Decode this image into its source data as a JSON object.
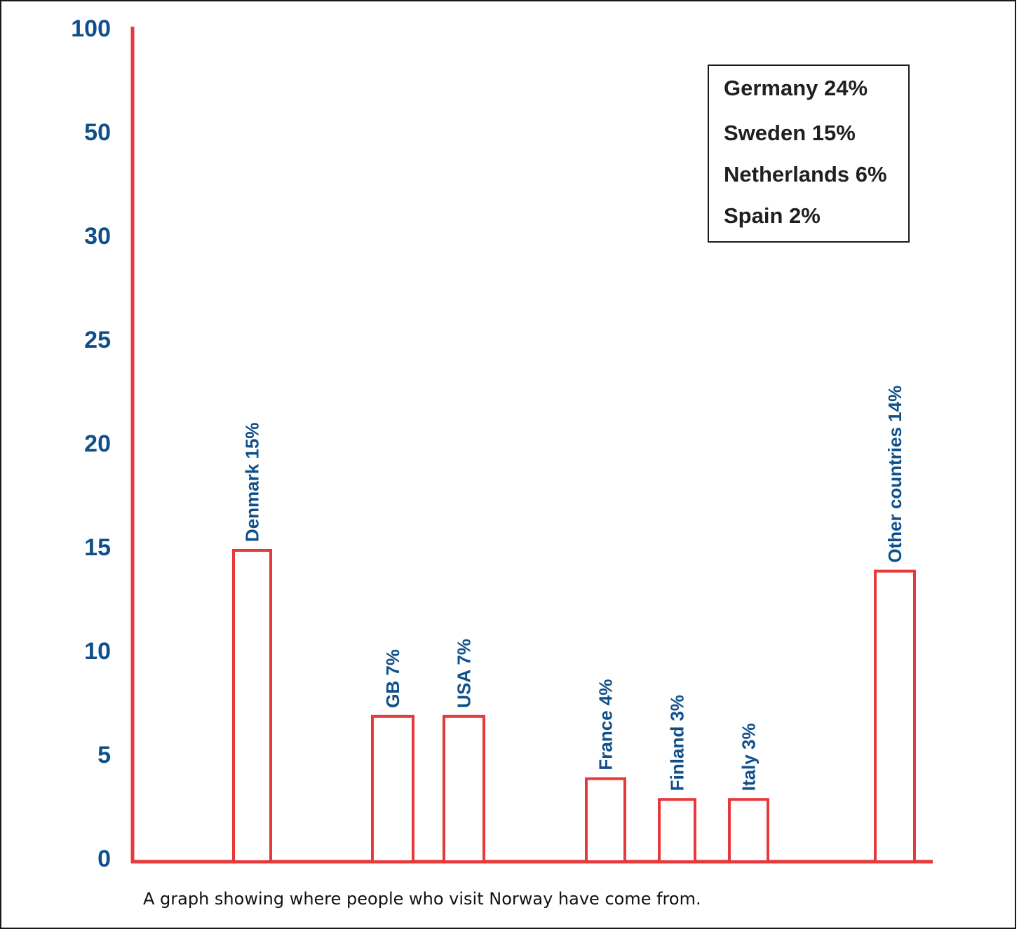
{
  "chart_data": {
    "type": "bar",
    "y_ticks": [
      "100",
      "50",
      "30",
      "25",
      "20",
      "15",
      "10",
      "5",
      "0"
    ],
    "categories": [
      "Denmark 15%",
      "GB 7%",
      "USA 7%",
      "France 4%",
      "Finland 3%",
      "Italy 3%",
      "Other countries 14%"
    ],
    "values": [
      15,
      7,
      7,
      4,
      3,
      3,
      14
    ],
    "legend": [
      "Germany 24%",
      "Sweden 15%",
      "Netherlands 6%",
      "Spain 2%"
    ],
    "caption": "A graph showing where people who visit Norway have come from.",
    "colors": {
      "bars": "#e8393a",
      "labels": "#0f4f8a",
      "axis": "#e8393a"
    }
  }
}
